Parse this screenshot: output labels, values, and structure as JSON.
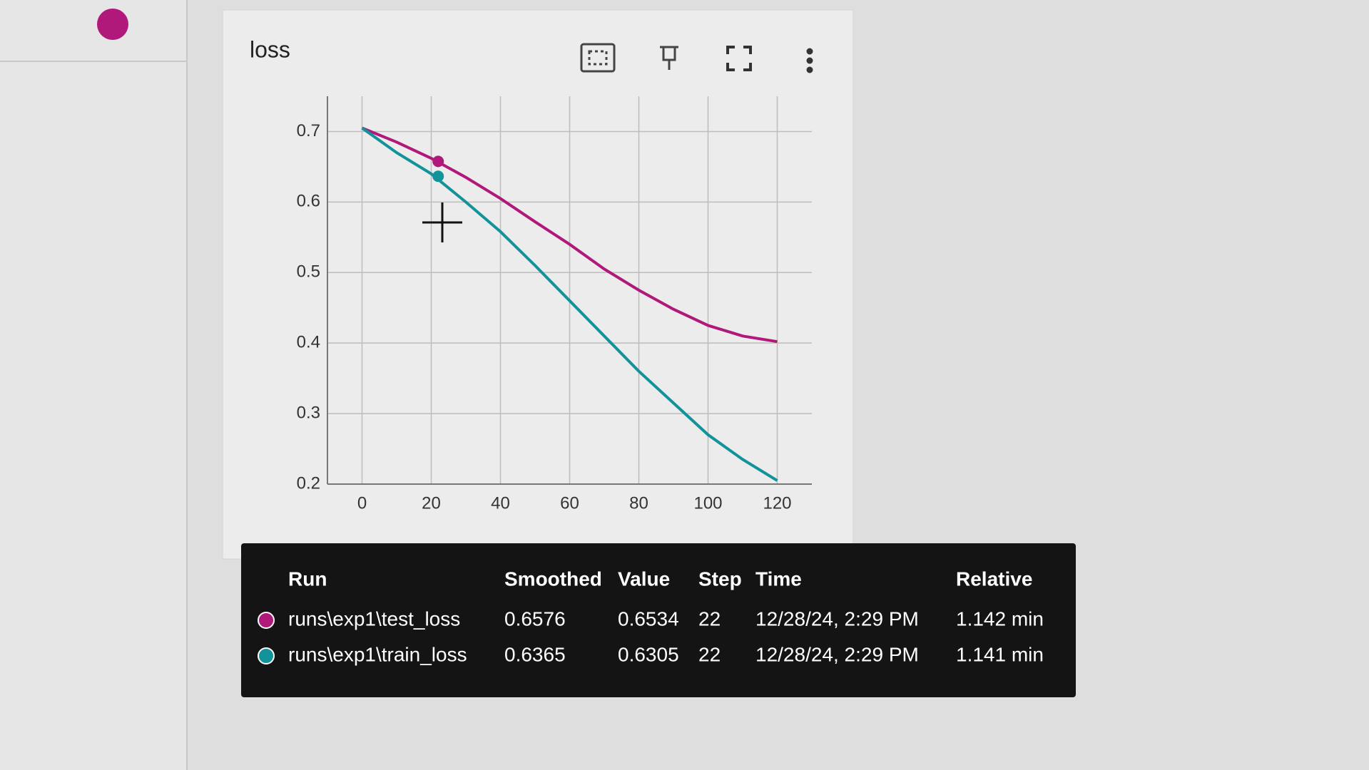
{
  "chart_data": {
    "type": "line",
    "title": "loss",
    "x": [
      0,
      10,
      20,
      30,
      40,
      50,
      60,
      70,
      80,
      90,
      100,
      110,
      120
    ],
    "series": [
      {
        "name": "runs\\exp1\\test_loss",
        "color": "#b0197a",
        "values": [
          0.705,
          0.685,
          0.662,
          0.635,
          0.605,
          0.572,
          0.54,
          0.505,
          0.475,
          0.448,
          0.425,
          0.41,
          0.402
        ]
      },
      {
        "name": "runs\\exp1\\train_loss",
        "color": "#12939a",
        "values": [
          0.705,
          0.67,
          0.64,
          0.6,
          0.558,
          0.51,
          0.46,
          0.41,
          0.36,
          0.315,
          0.27,
          0.235,
          0.205
        ]
      }
    ],
    "xlim": [
      -10,
      130
    ],
    "xticks": [
      0,
      20,
      40,
      60,
      80,
      100,
      120
    ],
    "ylim": [
      0.2,
      0.75
    ],
    "yticks": [
      0.2,
      0.3,
      0.4,
      0.5,
      0.6,
      0.7
    ],
    "grid": true
  },
  "tooltip": {
    "columns": [
      "Run",
      "Smoothed",
      "Value",
      "Step",
      "Time",
      "Relative"
    ],
    "rows": [
      [
        "runs\\exp1\\test_loss",
        0.6576,
        0.6534,
        22,
        "12/28/24, 2:29 PM",
        "1.142 min"
      ],
      [
        "runs\\exp1\\train_loss",
        0.6365,
        0.6305,
        22,
        "12/28/24, 2:29 PM",
        "1.141 min"
      ]
    ]
  }
}
